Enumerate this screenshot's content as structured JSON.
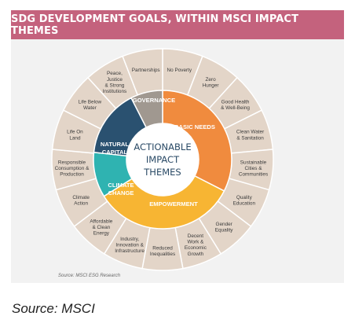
{
  "title": "SDG DEVELOPMENT GOALS, WITHIN MSCI IMPACT THEMES",
  "center": {
    "line1": "ACTIONABLE",
    "line2": "IMPACT",
    "line3": "THEMES"
  },
  "themes": [
    {
      "key": "basic",
      "label": [
        "BASIC NEEDS"
      ],
      "color": "#f08b3e"
    },
    {
      "key": "empower",
      "label": [
        "EMPOWERMENT"
      ],
      "color": "#f7b533"
    },
    {
      "key": "climate",
      "label": [
        "CLIMATE",
        "CHANGE"
      ],
      "color": "#2fb3b1"
    },
    {
      "key": "natural",
      "label": [
        "NATURAL",
        "CAPITAL"
      ],
      "color": "#2a5170"
    },
    {
      "key": "governance",
      "label": [
        "GOVERNANCE"
      ],
      "color": "#a09890"
    }
  ],
  "sdgs": [
    [
      "No Poverty"
    ],
    [
      "Zero",
      "Hunger"
    ],
    [
      "Good Health",
      "& Well-Being"
    ],
    [
      "Clean Water",
      "& Sanitation"
    ],
    [
      "Sustainable",
      "Cities &",
      "Communities"
    ],
    [
      "Quality",
      "Education"
    ],
    [
      "Gender",
      "Equality"
    ],
    [
      "Decent",
      "Work &",
      "Economic",
      "Growth"
    ],
    [
      "Reduced",
      "Inequalities"
    ],
    [
      "Industry,",
      "Innovation &",
      "Infrastructure"
    ],
    [
      "Affordable",
      "& Clean",
      "Energy"
    ],
    [
      "Climate",
      "Action"
    ],
    [
      "Responsible",
      "Consumption &",
      "Production"
    ],
    [
      "Life On",
      "Land"
    ],
    [
      "Life Below",
      "Water"
    ],
    [
      "Peace,",
      "Justice",
      "& Strong",
      "Institutions"
    ],
    [
      "Partnerships"
    ]
  ],
  "colors": {
    "outer_ring": "#e3d5c8",
    "banner": "#c4627d",
    "panel": "#f2f2f2"
  },
  "source_small": "Source: MSCI ESG Research",
  "source_main": "Source: MSCI"
}
